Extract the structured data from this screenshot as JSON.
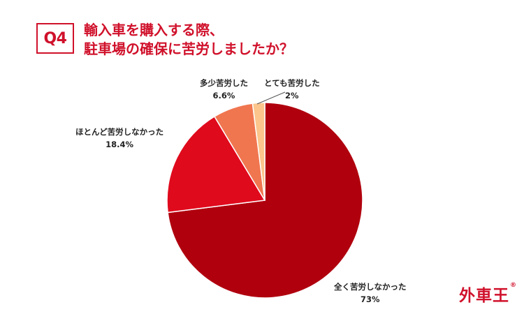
{
  "header": {
    "question_badge": "Q4",
    "title_line1": "輸入車を購入する際、",
    "title_line2": "駐車場の確保に苦労しましたか？"
  },
  "chart_data": {
    "type": "pie",
    "start_angle_deg": 0,
    "direction": "clockwise",
    "slices": [
      {
        "label": "全く苦労しなかった",
        "value": 73,
        "value_label": "73%",
        "color": "#b0000e"
      },
      {
        "label": "ほとんど苦労しなかった",
        "value": 18.4,
        "value_label": "18.4%",
        "color": "#e00a1d"
      },
      {
        "label": "多少苦労した",
        "value": 6.6,
        "value_label": "6.6%",
        "color": "#f07650"
      },
      {
        "label": "とても苦労した",
        "value": 2,
        "value_label": "2%",
        "color": "#fbc58c"
      }
    ]
  },
  "logo": {
    "text": "外車王",
    "mark": "®"
  }
}
